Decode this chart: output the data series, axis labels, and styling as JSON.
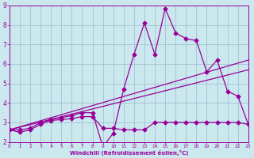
{
  "xlabel": "Windchill (Refroidissement éolien,°C)",
  "bg_color": "#cbe8ef",
  "line_color": "#990099",
  "grid_color": "#99bbcc",
  "x_min": 0,
  "x_max": 23,
  "y_min": 2,
  "y_max": 9,
  "line1_x": [
    0,
    1,
    2,
    3,
    4,
    5,
    6,
    7,
    8,
    9,
    10,
    11,
    12,
    13,
    14,
    15,
    16,
    17,
    18,
    19,
    20,
    21,
    22,
    23
  ],
  "line1_y": [
    2.62,
    2.5,
    2.62,
    2.9,
    3.1,
    3.15,
    3.2,
    3.3,
    3.3,
    2.7,
    2.7,
    2.62,
    2.62,
    2.62,
    3.0,
    3.0,
    3.0,
    3.0,
    3.0,
    3.0,
    3.0,
    3.0,
    3.0,
    2.9
  ],
  "line2_x": [
    0,
    1,
    2,
    3,
    4,
    5,
    6,
    7,
    8,
    9,
    10,
    11,
    12,
    13,
    14,
    15,
    16,
    17,
    18,
    19,
    20,
    21,
    22,
    23
  ],
  "line2_y": [
    2.62,
    2.62,
    2.7,
    3.0,
    3.15,
    3.25,
    3.35,
    3.5,
    3.5,
    1.75,
    2.45,
    4.7,
    6.5,
    8.1,
    6.5,
    8.85,
    7.6,
    7.3,
    7.2,
    5.6,
    6.2,
    4.6,
    4.35,
    2.9
  ],
  "line3_x": [
    0,
    23
  ],
  "line3_y": [
    2.62,
    5.7
  ],
  "line4_x": [
    0,
    23
  ],
  "line4_y": [
    2.62,
    6.2
  ],
  "marker": "D",
  "markersize": 2.5,
  "linewidth": 0.9,
  "tick_fontsize_x": 4.2,
  "tick_fontsize_y": 5.5
}
